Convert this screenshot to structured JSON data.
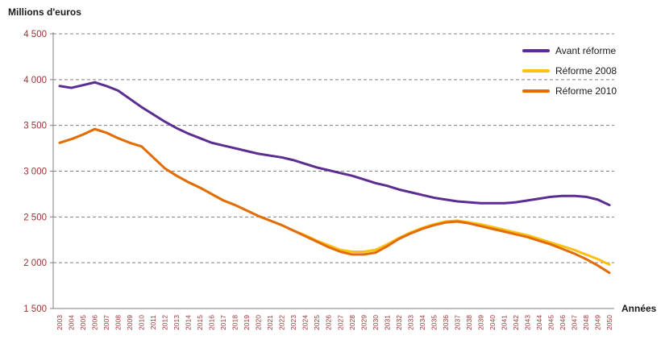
{
  "chart_data": {
    "type": "line",
    "title": "Millions d'euros",
    "xlabel": "Années",
    "ylabel": "Millions d'euros",
    "ylim": [
      1500,
      4500
    ],
    "ytick_step": 500,
    "y_ticks": [
      1500,
      2000,
      2500,
      3000,
      3500,
      4000,
      4500
    ],
    "grid": "horizontal-dashed",
    "legend_position": "top-right",
    "tick_color": "#943634",
    "grid_color": "#7f7f7f",
    "axis_color": "#808080",
    "x": [
      2003,
      2004,
      2005,
      2006,
      2007,
      2008,
      2009,
      2010,
      2011,
      2012,
      2013,
      2014,
      2015,
      2016,
      2017,
      2018,
      2019,
      2020,
      2021,
      2022,
      2023,
      2024,
      2025,
      2026,
      2027,
      2028,
      2029,
      2030,
      2031,
      2032,
      2033,
      2034,
      2035,
      2036,
      2037,
      2038,
      2039,
      2040,
      2041,
      2042,
      2043,
      2044,
      2045,
      2046,
      2047,
      2048,
      2049,
      2050
    ],
    "series": [
      {
        "name": "Avant réforme",
        "color": "#5c2d91",
        "values": [
          3930,
          3910,
          3940,
          3970,
          3930,
          3880,
          3790,
          3700,
          3620,
          3540,
          3470,
          3410,
          3360,
          3310,
          3280,
          3250,
          3220,
          3190,
          3170,
          3150,
          3120,
          3080,
          3040,
          3010,
          2980,
          2950,
          2910,
          2870,
          2840,
          2800,
          2770,
          2740,
          2710,
          2690,
          2670,
          2660,
          2650,
          2650,
          2650,
          2660,
          2680,
          2700,
          2720,
          2730,
          2730,
          2720,
          2690,
          2630
        ]
      },
      {
        "name": "Réforme 2008",
        "color": "#fdc010",
        "values": [
          3310,
          3350,
          3400,
          3460,
          3420,
          3360,
          3310,
          3270,
          3150,
          3030,
          2950,
          2880,
          2820,
          2750,
          2680,
          2630,
          2570,
          2510,
          2460,
          2410,
          2350,
          2300,
          2240,
          2190,
          2140,
          2120,
          2120,
          2140,
          2200,
          2270,
          2330,
          2380,
          2420,
          2450,
          2460,
          2440,
          2420,
          2390,
          2360,
          2330,
          2300,
          2260,
          2220,
          2180,
          2140,
          2090,
          2040,
          1980
        ]
      },
      {
        "name": "Réforme 2010",
        "color": "#e36c0a",
        "values": [
          3310,
          3350,
          3400,
          3460,
          3420,
          3360,
          3310,
          3270,
          3150,
          3030,
          2950,
          2880,
          2820,
          2750,
          2680,
          2630,
          2570,
          2510,
          2460,
          2410,
          2350,
          2290,
          2230,
          2170,
          2120,
          2090,
          2090,
          2110,
          2180,
          2260,
          2320,
          2370,
          2410,
          2440,
          2450,
          2430,
          2400,
          2370,
          2340,
          2310,
          2280,
          2240,
          2200,
          2150,
          2100,
          2040,
          1970,
          1890
        ]
      }
    ]
  }
}
